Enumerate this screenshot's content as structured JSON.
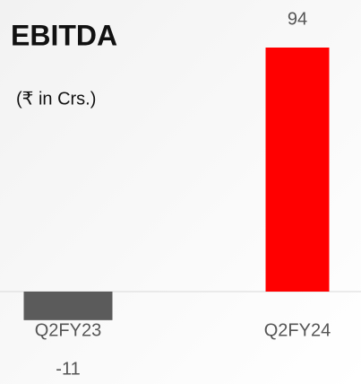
{
  "chart_data": {
    "type": "bar",
    "title": "EBITDA",
    "subtitle": "(₹ in Crs.)",
    "categories": [
      "Q2FY23",
      "Q2FY24"
    ],
    "values": [
      -11,
      94
    ],
    "colors": [
      "#5b5b5b",
      "#ff0000"
    ]
  }
}
